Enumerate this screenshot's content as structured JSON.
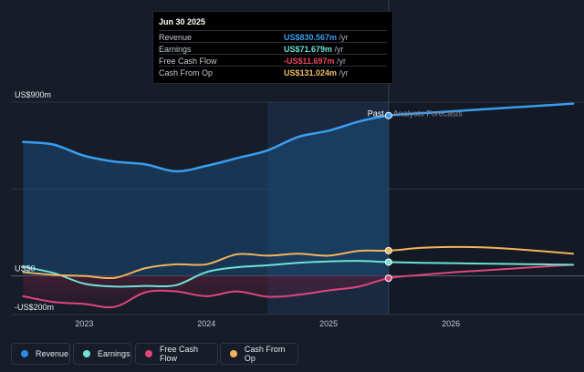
{
  "tooltip": {
    "date": "Jun 30 2025",
    "rows": [
      {
        "label": "Revenue",
        "value": "US$830.567m",
        "unit": " /yr",
        "color": "#3a9ef0"
      },
      {
        "label": "Earnings",
        "value": "US$71.679m",
        "unit": " /yr",
        "color": "#6ee2d4"
      },
      {
        "label": "Free Cash Flow",
        "value": "-US$11.697m",
        "unit": " /yr",
        "color": "#f0485d"
      },
      {
        "label": "Cash From Op",
        "value": "US$131.024m",
        "unit": " /yr",
        "color": "#f2c062"
      }
    ]
  },
  "legend": [
    {
      "label": "Revenue",
      "color": "#2e8ae6"
    },
    {
      "label": "Earnings",
      "color": "#6ee2d4"
    },
    {
      "label": "Free Cash Flow",
      "color": "#e0467c"
    },
    {
      "label": "Cash From Op",
      "color": "#f2b45c"
    }
  ],
  "chart_data": {
    "type": "line",
    "y_unit": "US$m",
    "ylim": [
      -200,
      900
    ],
    "y_tick_labels": [
      {
        "value": 900,
        "label": "US$900m"
      },
      {
        "value": 0,
        "label": "US$0"
      },
      {
        "value": -200,
        "label": "-US$200m"
      }
    ],
    "x_range": [
      2022.4,
      2027.0
    ],
    "x_tick_labels": [
      {
        "value": 2023.0,
        "label": "2023"
      },
      {
        "value": 2024.0,
        "label": "2024"
      },
      {
        "value": 2025.0,
        "label": "2025"
      },
      {
        "value": 2026.0,
        "label": "2026"
      }
    ],
    "past_label": "Past",
    "forecast_label": "Analysts Forecasts",
    "split_x": 2025.49,
    "highlight_start_x": 2024.5,
    "series": [
      {
        "name": "Revenue",
        "color": "#3a9ef0",
        "x": [
          2022.5,
          2022.75,
          2023.0,
          2023.25,
          2023.5,
          2023.75,
          2024.0,
          2024.25,
          2024.5,
          2024.75,
          2025.0,
          2025.25,
          2025.49,
          2025.75,
          2026.0,
          2026.25,
          2026.5,
          2026.75,
          2027.0
        ],
        "y": [
          694,
          680,
          622,
          592,
          578,
          542,
          570,
          610,
          650,
          720,
          752,
          800,
          830.6,
          842,
          852,
          862,
          872,
          882,
          892
        ]
      },
      {
        "name": "Earnings",
        "color": "#6ee2d4",
        "x": [
          2022.5,
          2022.75,
          2023.0,
          2023.25,
          2023.5,
          2023.75,
          2024.0,
          2024.25,
          2024.5,
          2024.75,
          2025.0,
          2025.25,
          2025.49,
          2025.75,
          2026.0,
          2026.25,
          2026.5,
          2026.75,
          2027.0
        ],
        "y": [
          48,
          15,
          -40,
          -55,
          -52,
          -48,
          20,
          45,
          55,
          68,
          75,
          78,
          71.7,
          68,
          66,
          64,
          62,
          60,
          58
        ]
      },
      {
        "name": "Free Cash Flow",
        "color": "#e0467c",
        "x": [
          2022.5,
          2022.75,
          2023.0,
          2023.25,
          2023.5,
          2023.75,
          2024.0,
          2024.25,
          2024.5,
          2024.75,
          2025.0,
          2025.25,
          2025.49,
          2025.75,
          2026.0,
          2026.25,
          2026.5,
          2026.75,
          2027.0
        ],
        "y": [
          -105,
          -135,
          -145,
          -160,
          -85,
          -80,
          -105,
          -80,
          -108,
          -98,
          -75,
          -55,
          -11.7,
          5,
          18,
          28,
          38,
          48,
          58
        ]
      },
      {
        "name": "Cash From Op",
        "color": "#f2b45c",
        "x": [
          2022.5,
          2022.75,
          2023.0,
          2023.25,
          2023.5,
          2023.75,
          2024.0,
          2024.25,
          2024.5,
          2024.75,
          2025.0,
          2025.25,
          2025.49,
          2025.75,
          2026.0,
          2026.25,
          2026.5,
          2026.75,
          2027.0
        ],
        "y": [
          20,
          5,
          0,
          -10,
          40,
          60,
          60,
          112,
          105,
          115,
          105,
          130,
          131,
          145,
          150,
          148,
          140,
          128,
          115
        ]
      }
    ]
  }
}
